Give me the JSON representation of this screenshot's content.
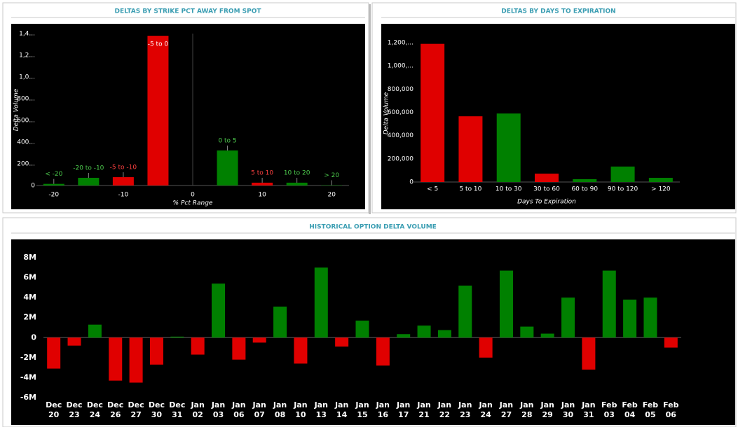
{
  "chart_data": [
    {
      "type": "bar",
      "title": "DELTAS BY STRIKE PCT AWAY FROM SPOT",
      "xlabel": "% Pct Range",
      "ylabel": "Delta Volume",
      "x": [
        -20,
        -15,
        -10,
        -5,
        5,
        10,
        15,
        20
      ],
      "categories": [
        "< -20",
        "-20 to -10",
        "-5 to -10",
        "-5 to 0",
        "0 to 5",
        "5 to 10",
        "10 to 20",
        "> 20"
      ],
      "values": [
        15000,
        71000,
        77000,
        1380000,
        323000,
        26000,
        26000,
        3000
      ],
      "colors": [
        "#008000",
        "#008000",
        "#e00000",
        "#e00000",
        "#008000",
        "#e00000",
        "#008000",
        "#008000"
      ],
      "xlim": [
        -22.5,
        22.5
      ],
      "xticks": [
        -20,
        -10,
        0,
        10,
        20
      ],
      "ylim": [
        0,
        1400000
      ],
      "yticks": [
        0,
        {
          "value": 200000,
          "label": "200..."
        },
        {
          "value": 400000,
          "label": "400..."
        },
        {
          "value": 600000,
          "label": "600..."
        },
        {
          "value": 800000,
          "label": "800..."
        },
        {
          "value": 1000000,
          "label": "1,0..."
        },
        {
          "value": 1200000,
          "label": "1,2..."
        },
        {
          "value": 1400000,
          "label": "1,4..."
        }
      ]
    },
    {
      "type": "bar",
      "title": "DELTAS BY DAYS TO EXPIRATION",
      "xlabel": "Days To Expiration",
      "ylabel": "Delta Volume",
      "categories": [
        "< 5",
        "5 to 10",
        "10 to 30",
        "30 to 60",
        "60 to 90",
        "90 to 120",
        "> 120"
      ],
      "values": [
        1190000,
        566000,
        590000,
        72000,
        24000,
        133000,
        36000
      ],
      "colors": [
        "#e00000",
        "#e00000",
        "#008000",
        "#e00000",
        "#008000",
        "#008000",
        "#008000"
      ],
      "ylim": [
        0,
        1200000
      ],
      "yticks": [
        0,
        {
          "value": 200000,
          "label": "200,000"
        },
        {
          "value": 400000,
          "label": "400,000"
        },
        {
          "value": 600000,
          "label": "600,000"
        },
        {
          "value": 800000,
          "label": "800,000"
        },
        {
          "value": 1000000,
          "label": "1,000,..."
        },
        {
          "value": 1200000,
          "label": "1,200,..."
        }
      ]
    },
    {
      "type": "bar",
      "title": "HISTORICAL OPTION DELTA VOLUME",
      "categories": [
        "Dec 20",
        "Dec 23",
        "Dec 24",
        "Dec 26",
        "Dec 27",
        "Dec 30",
        "Dec 31",
        "Jan 02",
        "Jan 03",
        "Jan 06",
        "Jan 07",
        "Jan 08",
        "Jan 10",
        "Jan 13",
        "Jan 14",
        "Jan 15",
        "Jan 16",
        "Jan 17",
        "Jan 21",
        "Jan 22",
        "Jan 23",
        "Jan 24",
        "Jan 27",
        "Jan 28",
        "Jan 29",
        "Jan 30",
        "Jan 31",
        "Feb 03",
        "Feb 04",
        "Feb 05",
        "Feb 06"
      ],
      "values": [
        -3100000,
        -800000,
        1300000,
        -4300000,
        -4500000,
        -2700000,
        100000,
        -1700000,
        5400000,
        -2200000,
        -500000,
        3100000,
        -2600000,
        7000000,
        -900000,
        1700000,
        -2800000,
        350000,
        1200000,
        750000,
        5200000,
        -2000000,
        6700000,
        1100000,
        400000,
        4000000,
        -3200000,
        6700000,
        3800000,
        4000000,
        -1000000
      ],
      "positive_color": "#008000",
      "negative_color": "#e00000",
      "ylim": [
        -6000000,
        8000000
      ],
      "yticks": [
        {
          "value": -6000000,
          "label": "-6M"
        },
        {
          "value": -4000000,
          "label": "-4M"
        },
        {
          "value": -2000000,
          "label": "-2M"
        },
        0,
        {
          "value": 2000000,
          "label": "2M"
        },
        {
          "value": 4000000,
          "label": "4M"
        },
        {
          "value": 6000000,
          "label": "6M"
        },
        {
          "value": 8000000,
          "label": "8M"
        }
      ]
    }
  ]
}
